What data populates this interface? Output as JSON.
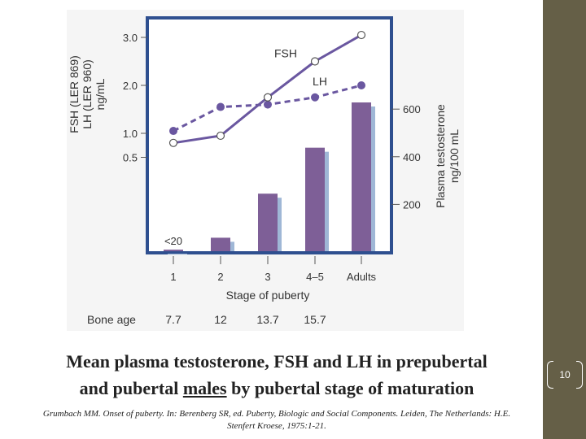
{
  "caption": {
    "line1": "Mean plasma testosterone, FSH and LH in prepubertal",
    "line2_pre": "and pubertal ",
    "line2_underlined": "males",
    "line2_post": " by pubertal stage of maturation"
  },
  "citation": {
    "line1": "Grumbach MM. Onset of puberty. In: Berenberg SR, ed. Puberty, Biologic and Social Components. Leiden, The Netherlands:  H.E.",
    "line2": "Stenfert Kroese, 1975:1-21."
  },
  "page_number": "10",
  "colors": {
    "sidebar": "#655f47",
    "chart_frame": "#2e4f8f",
    "bars": "#7e5f97",
    "bar_shadow": "#9fb7d6",
    "lines": "#6a57a0"
  },
  "chart_data": {
    "type": "bar",
    "title": "",
    "xlabel": "Stage of puberty",
    "categories": [
      "1",
      "2",
      "3",
      "4–5",
      "Adults"
    ],
    "bone_age": {
      "label": "Bone age",
      "values": [
        "7.7",
        "12",
        "13.7",
        "15.7",
        ""
      ]
    },
    "left_axis": {
      "label_line1": "FSH (LER 869)",
      "label_line2": "LH (LER 960)",
      "label_line3": "ng/mL",
      "ticks": [
        0.5,
        1.0,
        2.0,
        3.0
      ],
      "tick_labels": [
        "0.5",
        "1.0",
        "2.0",
        "3.0"
      ],
      "ylim": [
        0.5,
        3.0
      ]
    },
    "right_axis": {
      "label_line1": "Plasma testosterone",
      "label_line2": "ng/100 mL",
      "ticks": [
        200,
        400,
        600
      ],
      "tick_labels": [
        "200",
        "400",
        "600"
      ]
    },
    "series": [
      {
        "name": "Plasma testosterone",
        "kind": "bar",
        "axis": "right",
        "values": [
          10,
          60,
          245,
          438,
          628
        ],
        "labels": [
          "<20",
          "",
          "",
          "",
          ""
        ]
      },
      {
        "name": "FSH",
        "kind": "line",
        "style": "solid",
        "marker": "open",
        "axis": "left",
        "values": [
          0.8,
          0.95,
          1.75,
          2.5,
          3.05
        ]
      },
      {
        "name": "LH",
        "kind": "line",
        "style": "dashed",
        "marker": "filled",
        "axis": "left",
        "values": [
          1.05,
          1.55,
          1.6,
          1.75,
          2.0
        ]
      }
    ]
  }
}
